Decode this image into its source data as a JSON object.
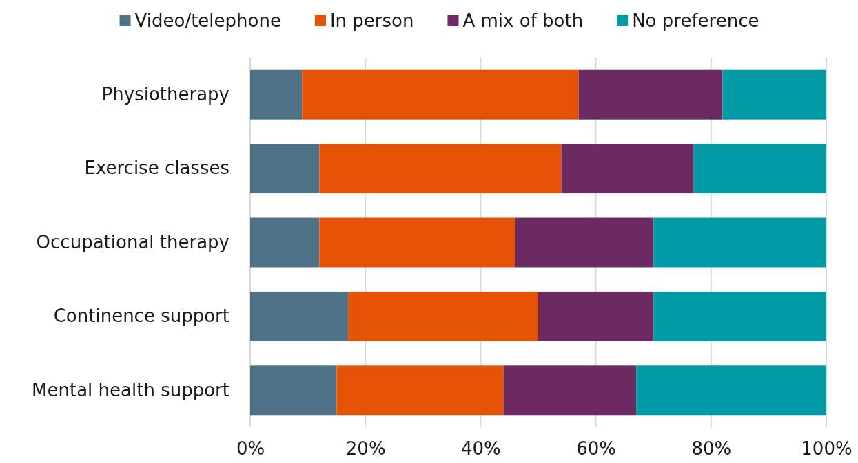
{
  "chart_data": {
    "type": "bar",
    "orientation": "horizontal",
    "stacked": true,
    "categories": [
      "Physiotherapy",
      "Exercise classes",
      "Occupational therapy",
      "Continence support",
      "Mental health support"
    ],
    "series": [
      {
        "name": "Video/telephone",
        "color": "#4f7386",
        "values": [
          9,
          12,
          12,
          17,
          15
        ]
      },
      {
        "name": "In person",
        "color": "#e35205",
        "values": [
          48,
          42,
          34,
          33,
          29
        ]
      },
      {
        "name": "A mix of both",
        "color": "#6c2a60",
        "values": [
          25,
          23,
          24,
          20,
          23
        ]
      },
      {
        "name": "No preference",
        "color": "#009ba4",
        "values": [
          18,
          23,
          30,
          30,
          33
        ]
      }
    ],
    "xlim": [
      0,
      100
    ],
    "xticks": [
      {
        "value": 0,
        "label": "0%"
      },
      {
        "value": 20,
        "label": "20%"
      },
      {
        "value": 40,
        "label": "40%"
      },
      {
        "value": 60,
        "label": "60%"
      },
      {
        "value": 80,
        "label": "80%"
      },
      {
        "value": 100,
        "label": "100%"
      }
    ],
    "grid": "x",
    "legend": "top"
  }
}
